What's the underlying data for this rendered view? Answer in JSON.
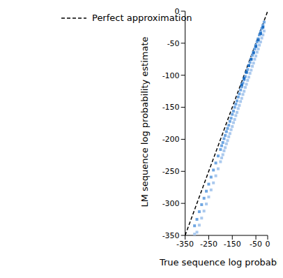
{
  "chart_data": {
    "type": "scatter",
    "xlabel": "True sequence log probability",
    "ylabel": "LM sequence log probability estimate",
    "xlim": [
      -350,
      0
    ],
    "ylim": [
      -350,
      0
    ],
    "xticks": [
      -350,
      -300,
      -250,
      -200,
      -150,
      -100,
      -50,
      0
    ],
    "yticks": [
      -350,
      -300,
      -250,
      -200,
      -150,
      -100,
      -50,
      0
    ],
    "grid": false,
    "legend": "upper left",
    "series": [
      {
        "type": "scatter",
        "marker": "square",
        "color": "#aac9ee",
        "x": [
          -310,
          -300,
          -290,
          -280,
          -270,
          -260,
          -250,
          -240,
          -230,
          -220,
          -210,
          -200,
          -195,
          -190,
          -185,
          -180,
          -175,
          -170,
          -165,
          -160,
          -155,
          -150,
          -145,
          -140,
          -135,
          -130,
          -125,
          -120,
          -115,
          -110,
          -105,
          -100,
          -95,
          -90,
          -85,
          -80,
          -75,
          -70,
          -65,
          -60,
          -55,
          -50,
          -45,
          -40,
          -35,
          -30,
          -25,
          -20,
          -15
        ],
        "values": [
          -348,
          -345,
          -334,
          -323,
          -312,
          -301,
          -290,
          -279,
          -268,
          -257,
          -246,
          -235,
          -229,
          -224,
          -218,
          -213,
          -207,
          -202,
          -196,
          -191,
          -185,
          -180,
          -174,
          -169,
          -163,
          -158,
          -152,
          -147,
          -141,
          -136,
          -130,
          -125,
          -119,
          -114,
          -108,
          -103,
          -97,
          -92,
          -86,
          -81,
          -75,
          -70,
          -64,
          -59,
          -53,
          -48,
          -42,
          -37,
          -31
        ]
      },
      {
        "type": "scatter",
        "marker": "square",
        "color": "#6fa6e2",
        "x": [
          -310,
          -300,
          -290,
          -280,
          -270,
          -260,
          -250,
          -240,
          -230,
          -220,
          -210,
          -200,
          -195,
          -190,
          -185,
          -180,
          -175,
          -170,
          -165,
          -160,
          -155,
          -150,
          -145,
          -140,
          -135,
          -130,
          -125,
          -120,
          -115,
          -110,
          -105,
          -100,
          -95,
          -90,
          -85,
          -80,
          -75,
          -70,
          -65,
          -60,
          -55,
          -50,
          -45,
          -40,
          -35,
          -30,
          -25,
          -20,
          -15
        ],
        "values": [
          -335,
          -325,
          -313,
          -302,
          -292,
          -281,
          -270,
          -259,
          -248,
          -237,
          -226,
          -216,
          -210,
          -205,
          -199,
          -194,
          -188,
          -183,
          -178,
          -172,
          -167,
          -161,
          -156,
          -150,
          -145,
          -140,
          -134,
          -129,
          -123,
          -118,
          -112,
          -107,
          -102,
          -96,
          -91,
          -85,
          -80,
          -75,
          -69,
          -64,
          -59,
          -53,
          -48,
          -43,
          -37,
          -32,
          -27,
          -22,
          -17
        ]
      },
      {
        "type": "scatter",
        "marker": "square",
        "color": "#1f6fc4",
        "x": [
          -110,
          -100,
          -90,
          -80,
          -70,
          -60,
          -50,
          -40,
          -30,
          -20
        ],
        "values": [
          -115,
          -105,
          -95,
          -85,
          -75,
          -65,
          -55,
          -45,
          -35,
          -25
        ]
      },
      {
        "name": "Perfect approximation",
        "type": "line",
        "line_style": "dashed",
        "color": "#000000",
        "x": [
          -350,
          0
        ],
        "values": [
          -350,
          0
        ]
      }
    ]
  }
}
